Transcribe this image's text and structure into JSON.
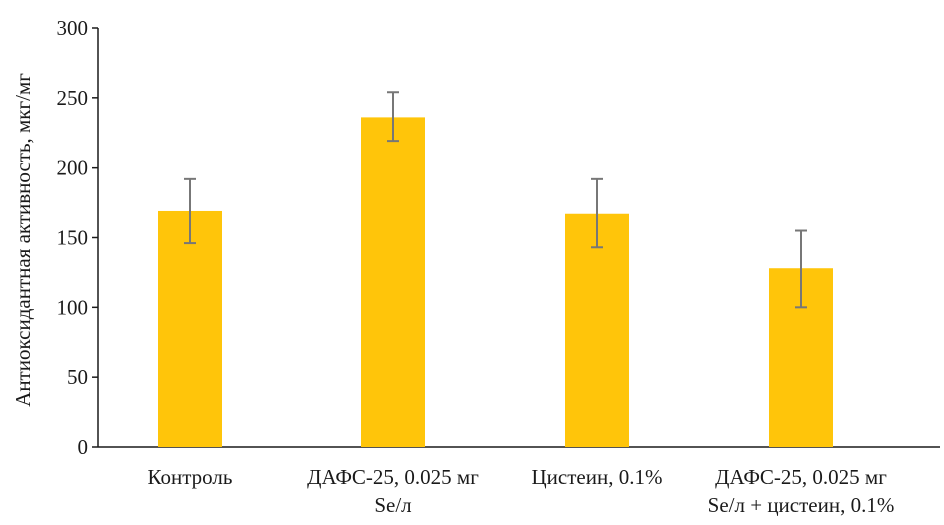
{
  "chart_data": {
    "type": "bar",
    "title": "",
    "xlabel": "",
    "ylabel": "Антиоксидантная активность, мкг/мг",
    "ylim": [
      0,
      300
    ],
    "yticks": [
      0,
      50,
      100,
      150,
      200,
      250,
      300
    ],
    "grid": false,
    "categories": [
      [
        "Контроль"
      ],
      [
        "ДАФС-25, 0.025 мг",
        "Se/л"
      ],
      [
        "Цистеин, 0.1%"
      ],
      [
        "ДАФС-25, 0.025 мг",
        "Se/л + цистеин, 0.1%"
      ]
    ],
    "values": [
      169,
      236,
      167,
      128
    ],
    "error_low": [
      146,
      219,
      143,
      100
    ],
    "error_high": [
      192,
      254,
      192,
      155
    ],
    "bar_color": "#FFC50A",
    "error_color": "#777777",
    "axis_color": "#1a1a1a"
  }
}
